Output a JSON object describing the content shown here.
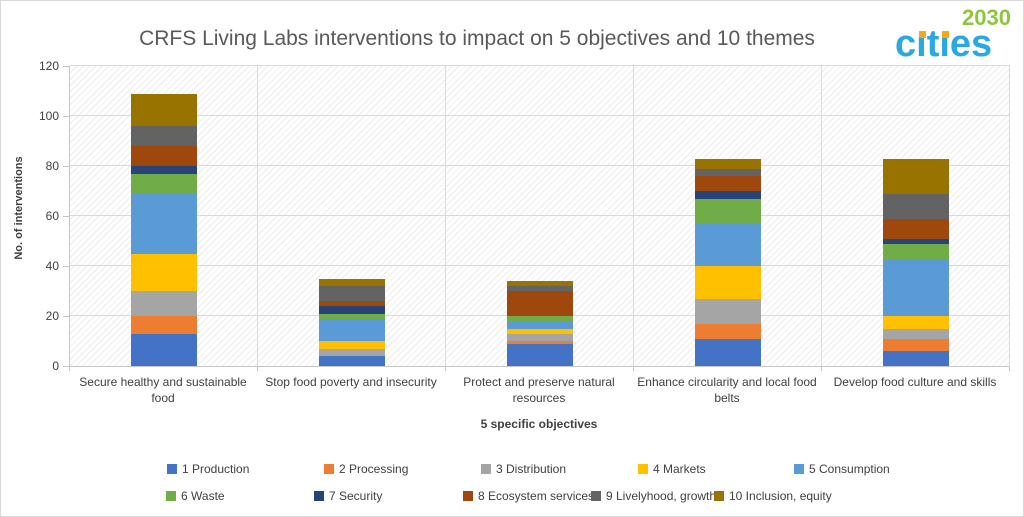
{
  "logo": {
    "text": "cities",
    "text_display": "cıtıes",
    "year": "2030",
    "colors": {
      "cities": "#29A9E0",
      "year": "#8DC63F",
      "dots": "#F5A81C"
    }
  },
  "chart_data": {
    "type": "bar",
    "stacked": true,
    "title": "CRFS Living Labs interventions to impact on 5 objectives and 10 themes",
    "xlabel": "5 specific objectives",
    "ylabel": "No. of interventions",
    "ylim": [
      0,
      120
    ],
    "ytick_step": 20,
    "grid": true,
    "plot_background": "diagonal-hatch",
    "legend_position": "bottom",
    "categories": [
      "Secure healthy and sustainable food",
      "Stop food poverty and insecurity",
      "Protect and preserve natural resources",
      "Enhance circularity and local food belts",
      "Develop food culture and skills"
    ],
    "series": [
      {
        "name": "1 Production",
        "color": "#4472C4",
        "values": [
          13,
          4,
          9,
          11,
          6
        ]
      },
      {
        "name": "2 Processing",
        "color": "#ED7D31",
        "values": [
          7,
          0,
          1,
          6,
          5
        ]
      },
      {
        "name": "3 Distribution",
        "color": "#A5A5A5",
        "values": [
          10,
          3,
          3,
          10,
          4
        ]
      },
      {
        "name": "4 Markets",
        "color": "#FFC000",
        "values": [
          15,
          3,
          2,
          13,
          5
        ]
      },
      {
        "name": "5 Consumption",
        "color": "#5B9BD5",
        "values": [
          24,
          9,
          3,
          17,
          23
        ]
      },
      {
        "name": "6 Waste",
        "color": "#70AD47",
        "values": [
          8,
          2,
          2,
          10,
          6
        ]
      },
      {
        "name": "7 Security",
        "color": "#264478",
        "values": [
          3,
          3,
          0,
          3,
          2
        ]
      },
      {
        "name": "8 Ecosystem services",
        "color": "#9E480E",
        "values": [
          8,
          2,
          10,
          6,
          8
        ]
      },
      {
        "name": "9 Livelyhood, growth",
        "color": "#636363",
        "values": [
          8,
          6,
          2,
          3,
          10
        ]
      },
      {
        "name": "10 Inclusion, equity",
        "color": "#997300",
        "values": [
          13,
          3,
          2,
          4,
          14
        ]
      }
    ],
    "bar_totals": [
      109,
      35,
      34,
      83,
      83
    ]
  }
}
